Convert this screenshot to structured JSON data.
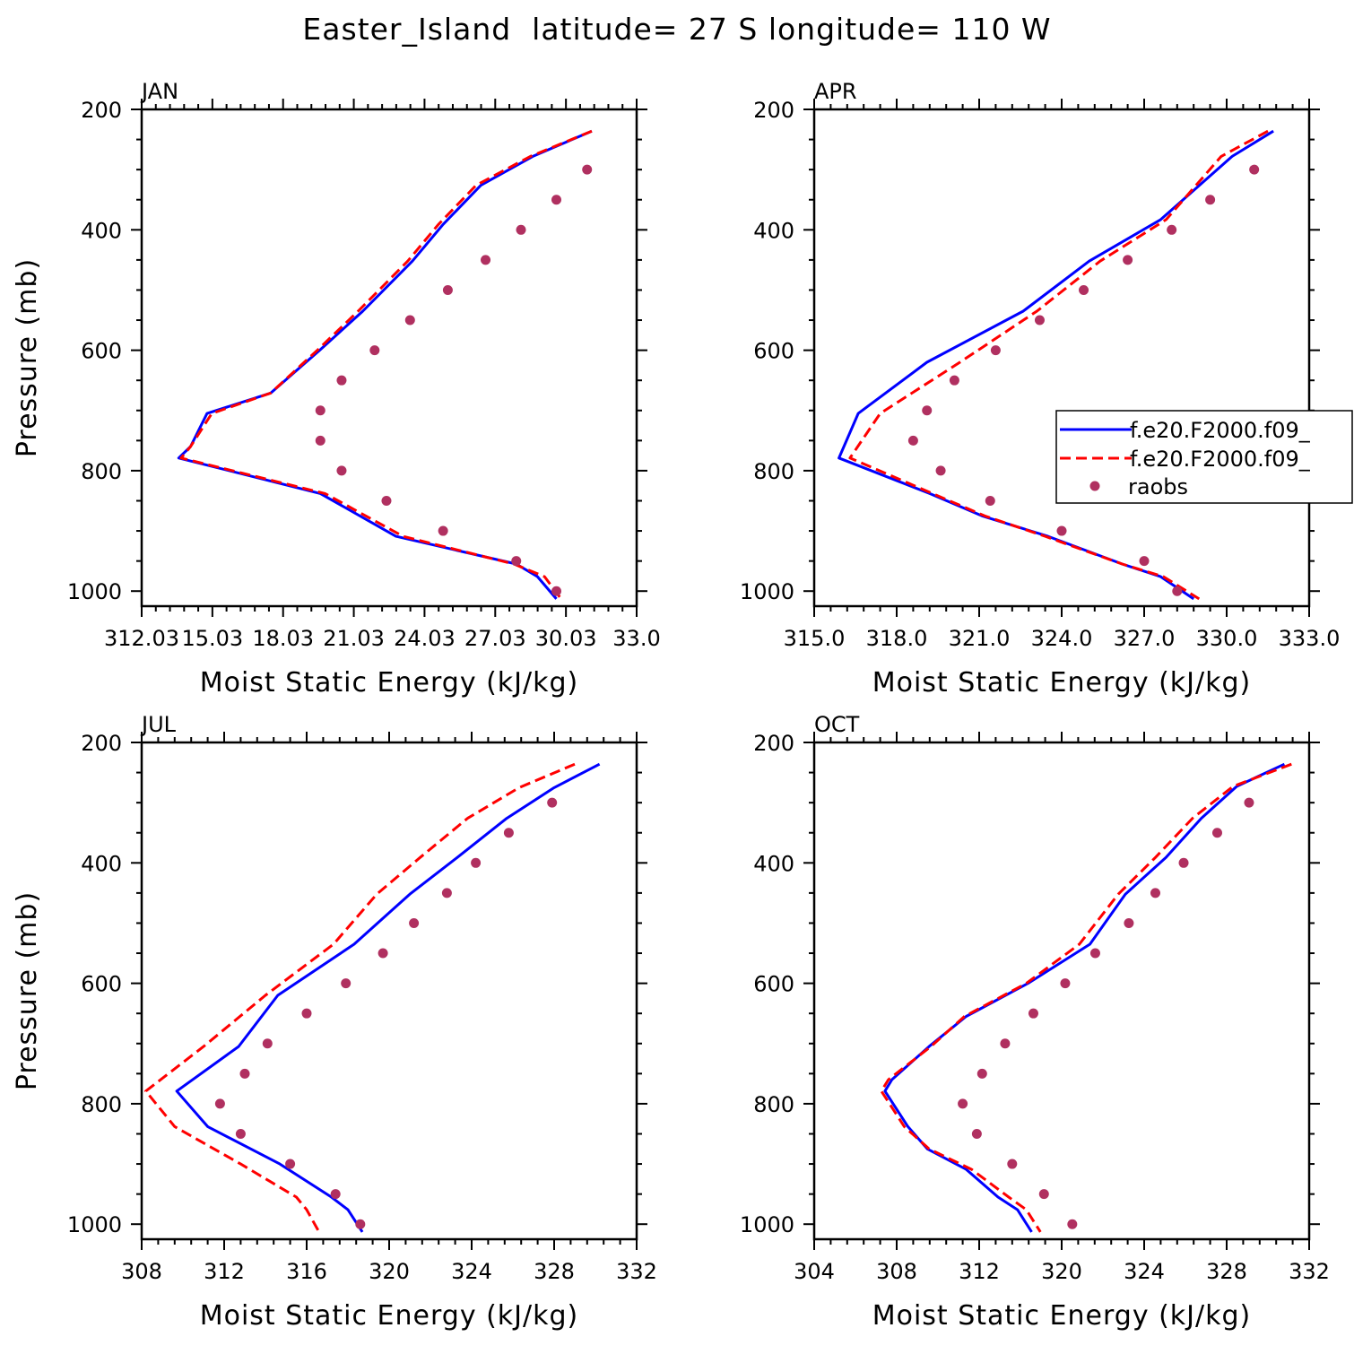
{
  "figure": {
    "title": "Easter_Island  latitude= 27 S longitude= 110 W"
  },
  "colors": {
    "series_1": "#0000ff",
    "series_2": "#ff0000",
    "raobs": "#b03060",
    "axes": "#000000"
  },
  "legend": {
    "placement": "right of APR panel",
    "entries": [
      {
        "label": "f.e20.F2000.f09_",
        "style": "solid",
        "color": "#0000ff"
      },
      {
        "label": "f.e20.F2000.f09_",
        "style": "dashed",
        "color": "#ff0000"
      },
      {
        "label": "raobs",
        "style": "marker",
        "color": "#b03060"
      }
    ]
  },
  "chart_data": [
    {
      "type": "line",
      "panel": "JAN",
      "xlabel": "Moist Static Energy (kJ/kg)",
      "ylabel": "Pressure (mb)",
      "xlim": [
        312.03,
        333.0
      ],
      "ylim": [
        1025,
        200
      ],
      "xticks": [
        "312.03",
        "15.03",
        "18.03",
        "21.03",
        "24.03",
        "27.03",
        "30.03",
        "33.0"
      ],
      "yticks": [
        "200",
        "400",
        "600",
        "800",
        "1000"
      ],
      "yticks_values": [
        200,
        400,
        600,
        800,
        1000
      ],
      "series": [
        {
          "style": "solid",
          "color": "#0000ff",
          "x": [
            331.1,
            328.6,
            326.4,
            324.8,
            323.5,
            321.4,
            319.6,
            317.5,
            314.8,
            314.1,
            313.6,
            319.6,
            322.8,
            327.9,
            328.8,
            329.6
          ],
          "y": [
            236,
            278,
            326,
            391,
            452,
            535,
            599,
            671,
            705,
            760,
            779,
            838,
            909,
            955,
            976,
            1013
          ]
        },
        {
          "style": "dashed",
          "color": "#ff0000",
          "x": [
            331.1,
            328.5,
            326.2,
            324.6,
            323.3,
            321.2,
            319.5,
            317.5,
            315.0,
            314.1,
            313.7,
            319.8,
            323.1,
            327.8,
            329.1,
            329.8
          ],
          "y": [
            236,
            278,
            326,
            391,
            452,
            535,
            599,
            671,
            705,
            760,
            779,
            838,
            909,
            955,
            976,
            1013
          ]
        }
      ],
      "raobs": {
        "color": "#b03060",
        "x": [
          330.9,
          329.6,
          328.1,
          326.6,
          325.0,
          323.4,
          321.9,
          320.5,
          319.6,
          319.6,
          320.5,
          322.4,
          324.8,
          327.9,
          329.6
        ],
        "y": [
          300,
          350,
          400,
          450,
          500,
          550,
          600,
          650,
          700,
          750,
          800,
          850,
          900,
          950,
          1000
        ]
      }
    },
    {
      "type": "line",
      "panel": "APR",
      "xlabel": "Moist Static Energy (kJ/kg)",
      "ylabel": "",
      "xlim": [
        315.0,
        333.0
      ],
      "ylim": [
        1025,
        200
      ],
      "xticks": [
        "315.0",
        "318.0",
        "321.0",
        "324.0",
        "327.0",
        "330.0",
        "333.0"
      ],
      "yticks": [
        "200",
        "400",
        "600",
        "800",
        "1000"
      ],
      "yticks_values": [
        200,
        400,
        600,
        800,
        1000
      ],
      "series": [
        {
          "style": "solid",
          "color": "#0000ff",
          "x": [
            331.7,
            330.2,
            327.6,
            325.0,
            322.6,
            319.1,
            316.6,
            315.9,
            319.2,
            321.1,
            323.5,
            326.2,
            327.6,
            328.8
          ],
          "y": [
            236,
            278,
            383,
            452,
            535,
            620,
            705,
            779,
            838,
            875,
            909,
            955,
            976,
            1013
          ]
        },
        {
          "style": "dashed",
          "color": "#ff0000",
          "x": [
            331.5,
            329.8,
            327.8,
            325.4,
            323.1,
            320.3,
            317.4,
            316.3,
            319.3,
            321.2,
            323.4,
            326.2,
            327.7,
            329.0
          ],
          "y": [
            236,
            278,
            383,
            452,
            535,
            620,
            705,
            779,
            838,
            875,
            909,
            955,
            976,
            1013
          ]
        }
      ],
      "raobs": {
        "color": "#b03060",
        "x": [
          331.0,
          329.4,
          328.0,
          326.4,
          324.8,
          323.2,
          321.6,
          320.1,
          319.1,
          318.6,
          319.6,
          321.4,
          324.0,
          327.0,
          328.2
        ],
        "y": [
          300,
          350,
          400,
          450,
          500,
          550,
          600,
          650,
          700,
          750,
          800,
          850,
          900,
          950,
          1000
        ]
      }
    },
    {
      "type": "line",
      "panel": "JUL",
      "xlabel": "Moist Static Energy (kJ/kg)",
      "ylabel": "Pressure (mb)",
      "xlim": [
        308,
        332
      ],
      "ylim": [
        1025,
        200
      ],
      "xticks": [
        "308",
        "312",
        "316",
        "320",
        "324",
        "328",
        "332"
      ],
      "yticks": [
        "200",
        "400",
        "600",
        "800",
        "1000"
      ],
      "yticks_values": [
        200,
        400,
        600,
        800,
        1000
      ],
      "series": [
        {
          "style": "solid",
          "color": "#0000ff",
          "x": [
            330.2,
            328.0,
            325.7,
            323.3,
            321.0,
            318.3,
            314.6,
            312.7,
            309.7,
            311.2,
            314.7,
            317.2,
            318.0,
            318.7
          ],
          "y": [
            236,
            275,
            326,
            391,
            452,
            535,
            620,
            705,
            779,
            838,
            900,
            955,
            976,
            1013
          ]
        },
        {
          "style": "dashed",
          "color": "#ff0000",
          "x": [
            329.0,
            326.3,
            323.8,
            321.5,
            319.4,
            317.3,
            314.0,
            311.0,
            308.2,
            309.6,
            312.8,
            315.5,
            316.0,
            316.6
          ],
          "y": [
            236,
            275,
            326,
            391,
            452,
            535,
            620,
            705,
            779,
            838,
            900,
            955,
            976,
            1013
          ]
        }
      ],
      "raobs": {
        "color": "#b03060",
        "x": [
          327.9,
          325.8,
          324.2,
          322.8,
          321.2,
          319.7,
          317.9,
          316.0,
          314.1,
          313.0,
          311.8,
          312.8,
          315.2,
          317.4,
          318.6
        ],
        "y": [
          300,
          350,
          400,
          450,
          500,
          550,
          600,
          650,
          700,
          750,
          800,
          850,
          900,
          950,
          1000
        ]
      }
    },
    {
      "type": "line",
      "panel": "OCT",
      "xlabel": "Moist Static Energy (kJ/kg)",
      "ylabel": "",
      "xlim": [
        304,
        332
      ],
      "ylim": [
        1025,
        200
      ],
      "xticks": [
        "304",
        "308",
        "312",
        "320",
        "324",
        "328",
        "332"
      ],
      "xticks_values": [
        304,
        308,
        312,
        320,
        324,
        328,
        332
      ],
      "yticks": [
        "200",
        "400",
        "600",
        "800",
        "1000"
      ],
      "yticks_values": [
        200,
        400,
        600,
        800,
        1000
      ],
      "series": [
        {
          "style": "solid",
          "color": "#0000ff",
          "x": [
            330.6,
            327.9,
            325.9,
            323.9,
            321.6,
            319.6,
            316.1,
            312.6,
            310.5,
            308.4,
            308.0,
            309.3,
            310.4,
            312.6,
            314.4,
            315.5,
            316.3
          ],
          "y": [
            236,
            273,
            326,
            391,
            452,
            535,
            600,
            655,
            705,
            760,
            779,
            838,
            875,
            909,
            955,
            976,
            1013
          ]
        },
        {
          "style": "dashed",
          "color": "#ff0000",
          "x": [
            331.0,
            327.7,
            325.4,
            323.3,
            321.2,
            319.0,
            316.0,
            312.5,
            310.6,
            308.2,
            307.8,
            309.1,
            310.5,
            312.9,
            315.0,
            316.0,
            316.8
          ],
          "y": [
            236,
            273,
            326,
            391,
            452,
            535,
            600,
            655,
            705,
            760,
            779,
            838,
            875,
            909,
            955,
            976,
            1013
          ]
        }
      ],
      "raobs": {
        "color": "#b03060",
        "x": [
          328.6,
          326.8,
          324.9,
          323.3,
          321.8,
          319.9,
          318.2,
          316.4,
          314.8,
          313.5,
          312.4,
          313.2,
          315.2,
          317.0,
          318.6
        ],
        "y": [
          300,
          350,
          400,
          450,
          500,
          550,
          600,
          650,
          700,
          750,
          800,
          850,
          900,
          950,
          1000
        ]
      }
    }
  ]
}
